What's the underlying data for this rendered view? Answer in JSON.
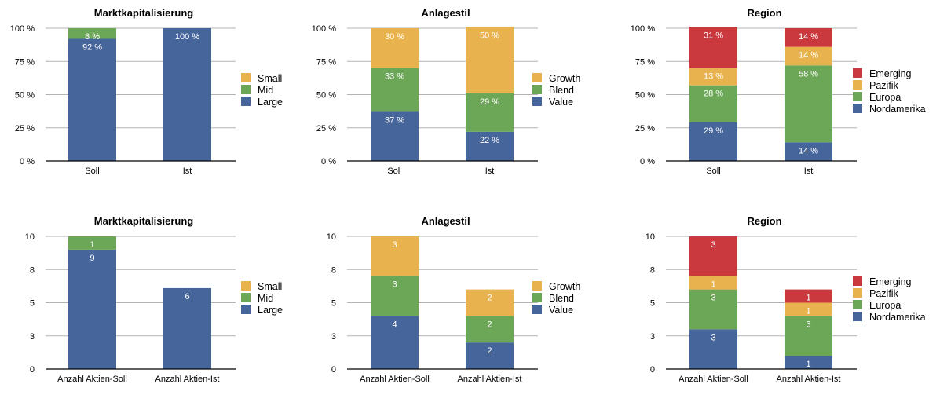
{
  "colors": {
    "blue": "#46659b",
    "green": "#6ca657",
    "yellow": "#e8b34e",
    "red": "#c9393e"
  },
  "chart_data": [
    {
      "id": "mk-pct",
      "type": "bar",
      "stacked": true,
      "title": "Marktkapitalisierung",
      "categories": [
        "Soll",
        "Ist"
      ],
      "ylim": [
        0,
        100
      ],
      "yticks": [
        0,
        25,
        50,
        75,
        100
      ],
      "ytick_labels": [
        "0 %",
        "25 %",
        "50 %",
        "75 %",
        "100 %"
      ],
      "grid": true,
      "legend_position": "right",
      "series": [
        {
          "name": "Large",
          "color": "#46659b",
          "values": [
            92,
            100
          ],
          "labels": [
            "92 %",
            "100 %"
          ]
        },
        {
          "name": "Mid",
          "color": "#6ca657",
          "values": [
            8,
            0
          ],
          "labels": [
            "8 %",
            ""
          ]
        },
        {
          "name": "Small",
          "color": "#e8b34e",
          "values": [
            0,
            0
          ],
          "labels": [
            "",
            ""
          ]
        }
      ]
    },
    {
      "id": "as-pct",
      "type": "bar",
      "stacked": true,
      "title": "Anlagestil",
      "categories": [
        "Soll",
        "Ist"
      ],
      "ylim": [
        0,
        100
      ],
      "yticks": [
        0,
        25,
        50,
        75,
        100
      ],
      "ytick_labels": [
        "0 %",
        "25 %",
        "50 %",
        "75 %",
        "100 %"
      ],
      "grid": true,
      "legend_position": "right",
      "series": [
        {
          "name": "Value",
          "color": "#46659b",
          "values": [
            37,
            22
          ],
          "labels": [
            "37 %",
            "22 %"
          ]
        },
        {
          "name": "Blend",
          "color": "#6ca657",
          "values": [
            33,
            29
          ],
          "labels": [
            "33 %",
            "29 %"
          ]
        },
        {
          "name": "Growth",
          "color": "#e8b34e",
          "values": [
            30,
            50
          ],
          "labels": [
            "30 %",
            "50 %"
          ]
        }
      ]
    },
    {
      "id": "rg-pct",
      "type": "bar",
      "stacked": true,
      "title": "Region",
      "categories": [
        "Soll",
        "Ist"
      ],
      "ylim": [
        0,
        100
      ],
      "yticks": [
        0,
        25,
        50,
        75,
        100
      ],
      "ytick_labels": [
        "0 %",
        "25 %",
        "50 %",
        "75 %",
        "100 %"
      ],
      "grid": true,
      "legend_position": "right",
      "series": [
        {
          "name": "Nordamerika",
          "color": "#46659b",
          "values": [
            29,
            14
          ],
          "labels": [
            "29 %",
            "14 %"
          ]
        },
        {
          "name": "Europa",
          "color": "#6ca657",
          "values": [
            28,
            58
          ],
          "labels": [
            "28 %",
            "58 %"
          ]
        },
        {
          "name": "Pazifik",
          "color": "#e8b34e",
          "values": [
            13,
            14
          ],
          "labels": [
            "13 %",
            "14 %"
          ]
        },
        {
          "name": "Emerging",
          "color": "#c9393e",
          "values": [
            31,
            14
          ],
          "labels": [
            "31 %",
            "14 %"
          ]
        }
      ]
    },
    {
      "id": "mk-cnt",
      "type": "bar",
      "stacked": true,
      "title": "Marktkapitalisierung",
      "categories": [
        "Anzahl Aktien-Soll",
        "Anzahl Aktien-Ist"
      ],
      "ylim": [
        0,
        10
      ],
      "yticks": [
        0,
        2.5,
        5,
        7.5,
        10
      ],
      "ytick_labels": [
        "0",
        "3",
        "5",
        "8",
        "10"
      ],
      "grid": true,
      "legend_position": "right",
      "series": [
        {
          "name": "Large",
          "color": "#46659b",
          "values": [
            9,
            6.1
          ],
          "labels": [
            "9",
            "6"
          ]
        },
        {
          "name": "Mid",
          "color": "#6ca657",
          "values": [
            1,
            0
          ],
          "labels": [
            "1",
            ""
          ]
        },
        {
          "name": "Small",
          "color": "#e8b34e",
          "values": [
            0,
            0
          ],
          "labels": [
            "",
            ""
          ]
        }
      ]
    },
    {
      "id": "as-cnt",
      "type": "bar",
      "stacked": true,
      "title": "Anlagestil",
      "categories": [
        "Anzahl Aktien-Soll",
        "Anzahl Aktien-Ist"
      ],
      "ylim": [
        0,
        10
      ],
      "yticks": [
        0,
        2.5,
        5,
        7.5,
        10
      ],
      "ytick_labels": [
        "0",
        "3",
        "5",
        "8",
        "10"
      ],
      "grid": true,
      "legend_position": "right",
      "series": [
        {
          "name": "Value",
          "color": "#46659b",
          "values": [
            4,
            2
          ],
          "labels": [
            "4",
            "2"
          ]
        },
        {
          "name": "Blend",
          "color": "#6ca657",
          "values": [
            3,
            2
          ],
          "labels": [
            "3",
            "2"
          ]
        },
        {
          "name": "Growth",
          "color": "#e8b34e",
          "values": [
            3,
            2
          ],
          "labels": [
            "3",
            "2"
          ]
        }
      ]
    },
    {
      "id": "rg-cnt",
      "type": "bar",
      "stacked": true,
      "title": "Region",
      "categories": [
        "Anzahl Aktien-Soll",
        "Anzahl Aktien-Ist"
      ],
      "ylim": [
        0,
        10
      ],
      "yticks": [
        0,
        2.5,
        5,
        7.5,
        10
      ],
      "ytick_labels": [
        "0",
        "3",
        "5",
        "8",
        "10"
      ],
      "grid": true,
      "legend_position": "right",
      "series": [
        {
          "name": "Nordamerika",
          "color": "#46659b",
          "values": [
            3,
            1
          ],
          "labels": [
            "3",
            "1"
          ]
        },
        {
          "name": "Europa",
          "color": "#6ca657",
          "values": [
            3,
            3
          ],
          "labels": [
            "3",
            "3"
          ]
        },
        {
          "name": "Pazifik",
          "color": "#e8b34e",
          "values": [
            1,
            1
          ],
          "labels": [
            "1",
            "1"
          ]
        },
        {
          "name": "Emerging",
          "color": "#c9393e",
          "values": [
            3,
            1
          ],
          "labels": [
            "3",
            "1"
          ]
        }
      ]
    }
  ]
}
